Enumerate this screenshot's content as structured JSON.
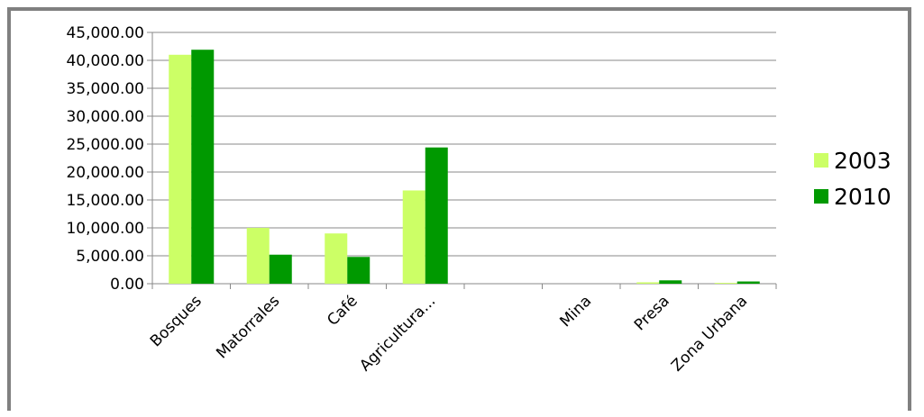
{
  "chart_data": {
    "type": "bar",
    "categories": [
      "Bosques",
      "Matorrales",
      "Café",
      "Agricultura...",
      "",
      "Mina",
      "Presa",
      "Zona Urbana"
    ],
    "series": [
      {
        "name": "2003",
        "color": "#ccff66",
        "values": [
          41000,
          10000,
          9000,
          16700,
          0,
          0,
          250,
          150
        ]
      },
      {
        "name": "2010",
        "color": "#009900",
        "values": [
          41900,
          5200,
          4800,
          24400,
          0,
          0,
          600,
          400
        ]
      }
    ],
    "y_ticks": [
      "0.00",
      "5,000.00",
      "10,000.00",
      "15,000.00",
      "20,000.00",
      "25,000.00",
      "30,000.00",
      "35,000.00",
      "40,000.00",
      "45,000.00"
    ],
    "ylim": [
      0,
      45000
    ],
    "grid": true,
    "legend": "right",
    "title": "",
    "xlabel": "",
    "ylabel": ""
  }
}
